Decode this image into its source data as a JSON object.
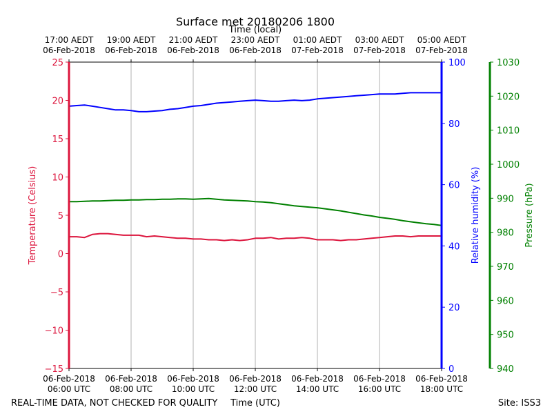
{
  "figure": {
    "title": "Surface met 20180206 1800",
    "footer_left": "REAL-TIME DATA, NOT CHECKED FOR QUALITY",
    "footer_right": "Site: ISS3"
  },
  "colors": {
    "temperature": "#dc143c",
    "humidity": "#0000ff",
    "pressure": "#008000",
    "grid": "#b0b0b0",
    "axis": "#000000"
  },
  "chart_data": {
    "type": "line",
    "grid": true,
    "x_utc_label": "Time (UTC)",
    "x_local_label": "Time (local)",
    "x_utc_ticks": [
      {
        "hour": 6,
        "line1": "06-Feb-2018",
        "line2": "06:00 UTC"
      },
      {
        "hour": 8,
        "line1": "06-Feb-2018",
        "line2": "08:00 UTC"
      },
      {
        "hour": 10,
        "line1": "06-Feb-2018",
        "line2": "10:00 UTC"
      },
      {
        "hour": 12,
        "line1": "06-Feb-2018",
        "line2": "12:00 UTC"
      },
      {
        "hour": 14,
        "line1": "06-Feb-2018",
        "line2": "14:00 UTC"
      },
      {
        "hour": 16,
        "line1": "06-Feb-2018",
        "line2": "16:00 UTC"
      },
      {
        "hour": 18,
        "line1": "06-Feb-2018",
        "line2": "18:00 UTC"
      }
    ],
    "x_local_ticks": [
      {
        "hour": 6,
        "line1": "17:00 AEDT",
        "line2": "06-Feb-2018"
      },
      {
        "hour": 8,
        "line1": "19:00 AEDT",
        "line2": "06-Feb-2018"
      },
      {
        "hour": 10,
        "line1": "21:00 AEDT",
        "line2": "06-Feb-2018"
      },
      {
        "hour": 12,
        "line1": "23:00 AEDT",
        "line2": "06-Feb-2018"
      },
      {
        "hour": 14,
        "line1": "01:00 AEDT",
        "line2": "07-Feb-2018"
      },
      {
        "hour": 16,
        "line1": "03:00 AEDT",
        "line2": "07-Feb-2018"
      },
      {
        "hour": 18,
        "line1": "05:00 AEDT",
        "line2": "07-Feb-2018"
      }
    ],
    "x_range_utc_hours": [
      6,
      18
    ],
    "temperature": {
      "label": "Temperature (Celsius)",
      "ylim": [
        -15,
        25
      ],
      "ticks": [
        25,
        20,
        15,
        10,
        5,
        0,
        -5,
        -10,
        -15
      ],
      "x": [
        6.0,
        6.25,
        6.5,
        6.75,
        7.0,
        7.25,
        7.5,
        7.75,
        8.0,
        8.25,
        8.5,
        8.75,
        9.0,
        9.25,
        9.5,
        9.75,
        10.0,
        10.25,
        10.5,
        10.75,
        11.0,
        11.25,
        11.5,
        11.75,
        12.0,
        12.25,
        12.5,
        12.75,
        13.0,
        13.25,
        13.5,
        13.75,
        14.0,
        14.25,
        14.5,
        14.75,
        15.0,
        15.25,
        15.5,
        15.75,
        16.0,
        16.25,
        16.5,
        16.75,
        17.0,
        17.25,
        17.5,
        17.75,
        18.0
      ],
      "values": [
        2.2,
        2.2,
        2.1,
        2.5,
        2.6,
        2.6,
        2.5,
        2.4,
        2.4,
        2.4,
        2.2,
        2.3,
        2.2,
        2.1,
        2.0,
        2.0,
        1.9,
        1.9,
        1.8,
        1.8,
        1.7,
        1.8,
        1.7,
        1.8,
        2.0,
        2.0,
        2.1,
        1.9,
        2.0,
        2.0,
        2.1,
        2.0,
        1.8,
        1.8,
        1.8,
        1.7,
        1.8,
        1.8,
        1.9,
        2.0,
        2.1,
        2.2,
        2.3,
        2.3,
        2.2,
        2.3,
        2.3,
        2.3,
        2.3
      ]
    },
    "humidity": {
      "label": "Relative humidity (%)",
      "ylim": [
        0,
        100
      ],
      "ticks": [
        100,
        80,
        60,
        40,
        20,
        0
      ],
      "x": [
        6.0,
        6.25,
        6.5,
        6.75,
        7.0,
        7.25,
        7.5,
        7.75,
        8.0,
        8.25,
        8.5,
        8.75,
        9.0,
        9.25,
        9.5,
        9.75,
        10.0,
        10.25,
        10.5,
        10.75,
        11.0,
        11.25,
        11.5,
        11.75,
        12.0,
        12.25,
        12.5,
        12.75,
        13.0,
        13.25,
        13.5,
        13.75,
        14.0,
        14.25,
        14.5,
        14.75,
        15.0,
        15.25,
        15.5,
        15.75,
        16.0,
        16.25,
        16.5,
        16.75,
        17.0,
        17.25,
        17.5,
        17.75,
        18.0
      ],
      "values": [
        85.6,
        85.8,
        86.0,
        85.6,
        85.2,
        84.8,
        84.4,
        84.4,
        84.2,
        83.8,
        83.8,
        84.0,
        84.2,
        84.6,
        84.8,
        85.2,
        85.6,
        85.8,
        86.2,
        86.6,
        86.8,
        87.0,
        87.2,
        87.4,
        87.6,
        87.4,
        87.2,
        87.2,
        87.4,
        87.6,
        87.4,
        87.6,
        88.0,
        88.2,
        88.4,
        88.6,
        88.8,
        89.0,
        89.2,
        89.4,
        89.6,
        89.6,
        89.6,
        89.8,
        90.0,
        90.0,
        90.0,
        90.0,
        90.0
      ]
    },
    "pressure": {
      "label": "Pressure (hPa)",
      "ylim": [
        940,
        1030
      ],
      "ticks": [
        1030,
        1020,
        1010,
        1000,
        990,
        980,
        970,
        960,
        950,
        940
      ],
      "x": [
        6.0,
        6.25,
        6.5,
        6.75,
        7.0,
        7.25,
        7.5,
        7.75,
        8.0,
        8.25,
        8.5,
        8.75,
        9.0,
        9.25,
        9.5,
        9.75,
        10.0,
        10.25,
        10.5,
        10.75,
        11.0,
        11.25,
        11.5,
        11.75,
        12.0,
        12.25,
        12.5,
        12.75,
        13.0,
        13.25,
        13.5,
        13.75,
        14.0,
        14.25,
        14.5,
        14.75,
        15.0,
        15.25,
        15.5,
        15.75,
        16.0,
        16.25,
        16.5,
        16.75,
        17.0,
        17.25,
        17.5,
        17.75,
        18.0
      ],
      "values": [
        989.0,
        989.0,
        989.1,
        989.2,
        989.2,
        989.3,
        989.4,
        989.4,
        989.5,
        989.5,
        989.6,
        989.6,
        989.7,
        989.7,
        989.8,
        989.8,
        989.7,
        989.8,
        989.9,
        989.7,
        989.5,
        989.4,
        989.3,
        989.2,
        989.0,
        988.9,
        988.7,
        988.4,
        988.1,
        987.8,
        987.6,
        987.4,
        987.2,
        986.9,
        986.6,
        986.3,
        985.9,
        985.5,
        985.1,
        984.8,
        984.4,
        984.1,
        983.8,
        983.4,
        983.1,
        982.8,
        982.5,
        982.3,
        982.0
      ]
    }
  }
}
